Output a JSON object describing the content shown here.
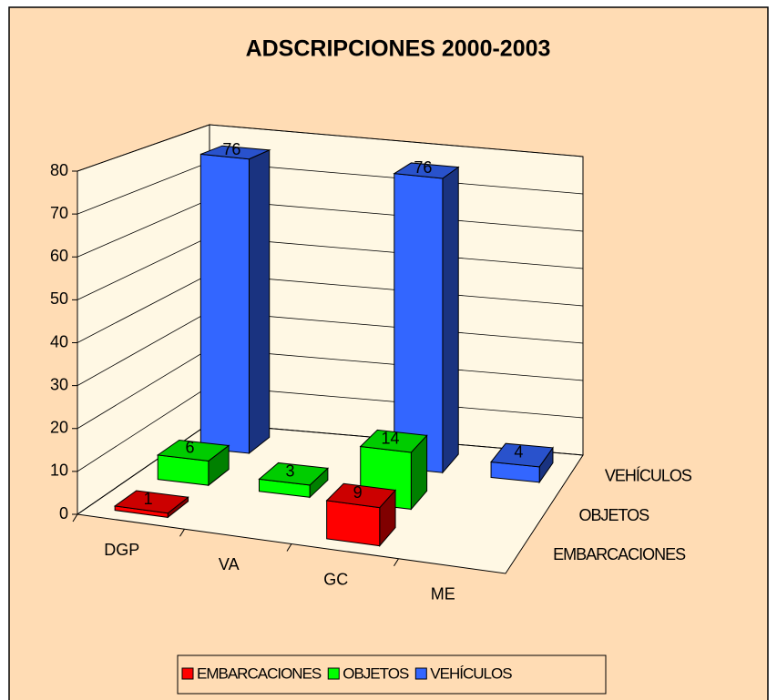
{
  "chart_data": {
    "type": "bar3d",
    "title": "ADSCRIPCIONES 2000-2003",
    "categories": [
      "DGP",
      "VA",
      "GC",
      "ME"
    ],
    "series": [
      {
        "name": "EMBARCACIONES",
        "color": "#ff0000",
        "values": [
          1,
          null,
          9,
          null
        ]
      },
      {
        "name": "OBJETOS",
        "color": "#00ff00",
        "values": [
          6,
          3,
          14,
          null
        ]
      },
      {
        "name": "VEHÍCULOS",
        "color": "#3366ff",
        "values": [
          76,
          null,
          76,
          4
        ]
      }
    ],
    "ylim": [
      0,
      80
    ],
    "yticks": [
      0,
      10,
      20,
      30,
      40,
      50,
      60,
      70,
      80
    ],
    "grid": true,
    "legend": "bottom"
  }
}
